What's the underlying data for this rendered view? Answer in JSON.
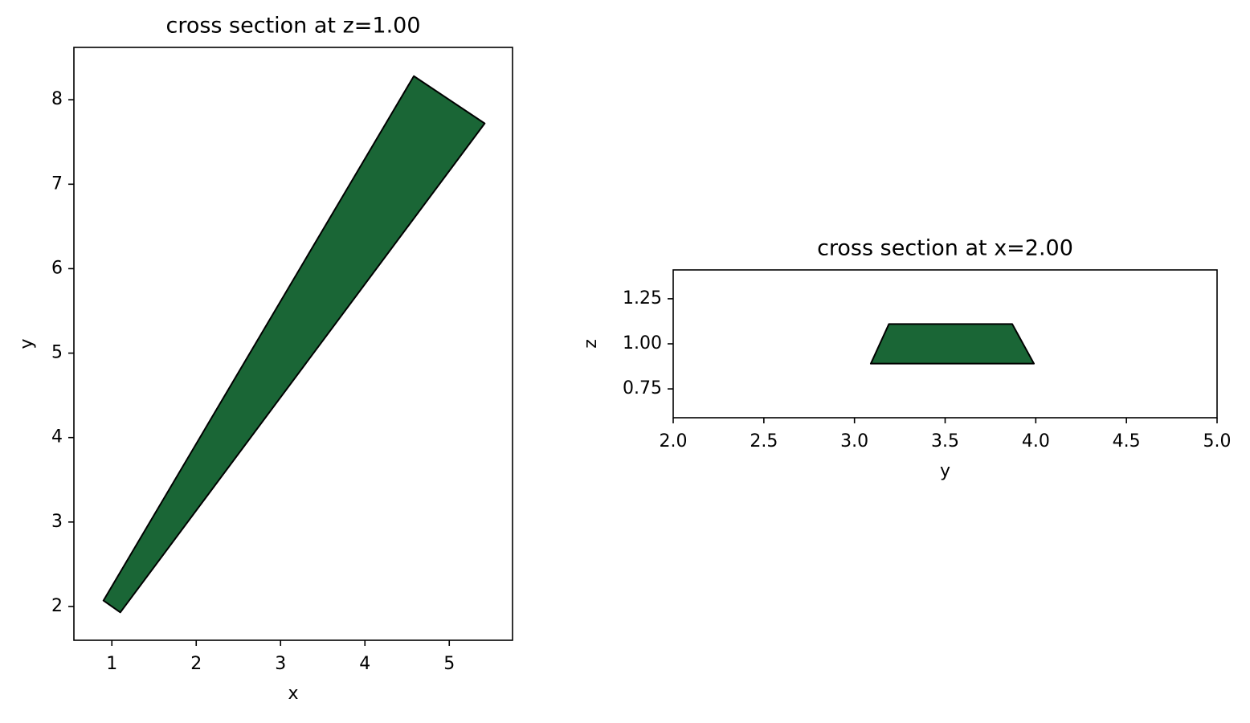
{
  "chart_data": [
    {
      "type": "polygon",
      "title": "cross section at z=1.00",
      "xlabel": "x",
      "ylabel": "y",
      "x": [
        0.9,
        1.1,
        5.42,
        4.58
      ],
      "y": [
        2.07,
        1.93,
        7.72,
        8.28
      ],
      "color": "#1a6636",
      "edgecolor": "#000000",
      "xlim": [
        0.55,
        5.75
      ],
      "ylim": [
        1.6,
        8.62
      ],
      "xticks": [
        1,
        2,
        3,
        4,
        5
      ],
      "yticks": [
        2,
        3,
        4,
        5,
        6,
        7,
        8
      ]
    },
    {
      "type": "polygon",
      "title": "cross section at x=2.00",
      "xlabel": "y",
      "ylabel": "z",
      "x": [
        3.09,
        3.99,
        3.87,
        3.19
      ],
      "y": [
        0.89,
        0.89,
        1.11,
        1.11
      ],
      "color": "#1a6636",
      "edgecolor": "#000000",
      "xlim": [
        2,
        5
      ],
      "ylim": [
        0.59,
        1.41
      ],
      "xticks": [
        {
          "value": 2,
          "label": "2.0"
        },
        2.5,
        {
          "value": 3,
          "label": "3.0"
        },
        3.5,
        {
          "value": 4,
          "label": "4.0"
        },
        4.5,
        {
          "value": 5,
          "label": "5.0"
        }
      ],
      "yticks": [
        0.75,
        {
          "value": 1,
          "label": "1.00"
        },
        1.25
      ]
    }
  ]
}
